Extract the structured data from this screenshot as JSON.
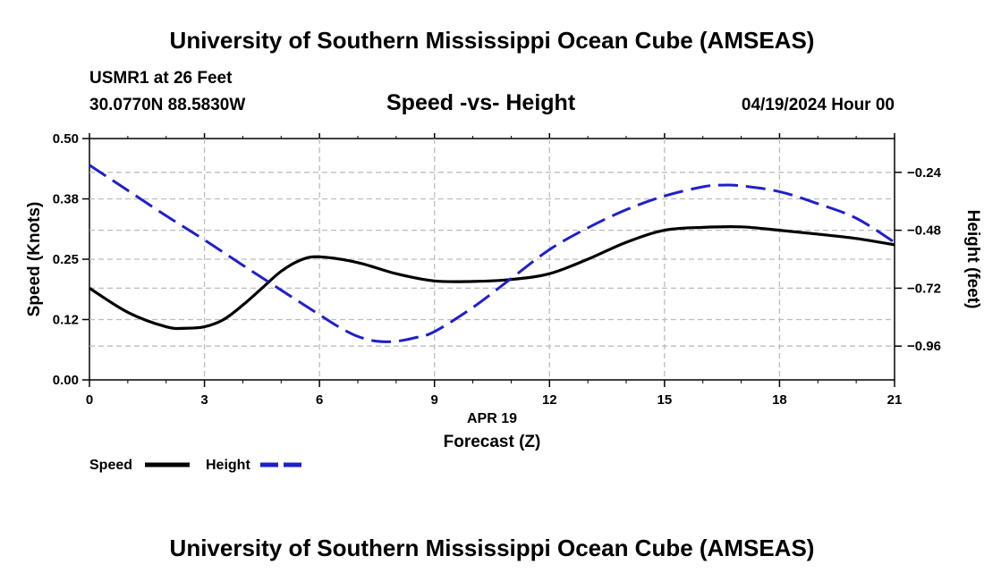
{
  "header": {
    "main_title": "University of Southern Mississippi Ocean Cube (AMSEAS)",
    "station": "USMR1 at 26 Feet",
    "coordinates": "30.0770N  88.5830W",
    "chart_title": "Speed -vs- Height",
    "datetime": "04/19/2024 Hour 00"
  },
  "footer": {
    "title": "University of Southern Mississippi Ocean Cube (AMSEAS)"
  },
  "colors": {
    "speed_line": "#000000",
    "height_line": "#1f1fcc",
    "grid": "#bdbdbd"
  },
  "chart_data": {
    "type": "line",
    "title": "Speed -vs- Height",
    "xlabel_date": "APR 19",
    "xlabel": "Forecast (Z)",
    "ylabel": "Speed (Knots)",
    "y2label": "Height (feet)",
    "xlim": [
      0,
      21
    ],
    "x_ticks": [
      0,
      3,
      6,
      9,
      12,
      15,
      18,
      21
    ],
    "x_tick_labels": [
      "0",
      "3",
      "6",
      "9",
      "12",
      "15",
      "18",
      "21"
    ],
    "ylim": [
      0,
      0.5
    ],
    "y_ticks": [
      0,
      0.125,
      0.25,
      0.375,
      0.5
    ],
    "y_tick_labels": [
      "0.00",
      "0.12",
      "0.25",
      "0.38",
      "0.50"
    ],
    "y2lim": [
      -1.1,
      -0.1
    ],
    "y2_ticks": [
      -0.96,
      -0.72,
      -0.48,
      -0.24
    ],
    "y2_tick_labels": [
      "−0.96",
      "−0.72",
      "−0.48",
      "−0.24"
    ],
    "series": [
      {
        "name": "Speed",
        "axis": "left",
        "style": "solid",
        "x": [
          0,
          1,
          2,
          2.5,
          3,
          3.5,
          4,
          4.5,
          5,
          5.5,
          6,
          7,
          8,
          9,
          10,
          11,
          12,
          13,
          14,
          15,
          16,
          17,
          18,
          19,
          20,
          21
        ],
        "values": [
          0.19,
          0.14,
          0.11,
          0.107,
          0.11,
          0.125,
          0.155,
          0.19,
          0.225,
          0.248,
          0.255,
          0.243,
          0.22,
          0.205,
          0.204,
          0.208,
          0.22,
          0.25,
          0.285,
          0.31,
          0.316,
          0.317,
          0.31,
          0.302,
          0.293,
          0.28
        ]
      },
      {
        "name": "Height",
        "axis": "right",
        "style": "dashed",
        "x": [
          0,
          1,
          2,
          3,
          4,
          5,
          6,
          6.5,
          7,
          7.5,
          8,
          8.5,
          9,
          10,
          11,
          12,
          13,
          14,
          15,
          16,
          16.5,
          17,
          18,
          19,
          20,
          21
        ],
        "values": [
          -0.21,
          -0.315,
          -0.42,
          -0.52,
          -0.625,
          -0.728,
          -0.83,
          -0.88,
          -0.92,
          -0.94,
          -0.94,
          -0.925,
          -0.9,
          -0.8,
          -0.68,
          -0.56,
          -0.47,
          -0.395,
          -0.338,
          -0.3,
          -0.293,
          -0.296,
          -0.32,
          -0.37,
          -0.43,
          -0.53
        ]
      }
    ],
    "legend": [
      {
        "label": "Speed",
        "style": "solid"
      },
      {
        "label": "Height",
        "style": "dashed"
      }
    ],
    "legend_position": "bottom-left",
    "grid": true
  }
}
